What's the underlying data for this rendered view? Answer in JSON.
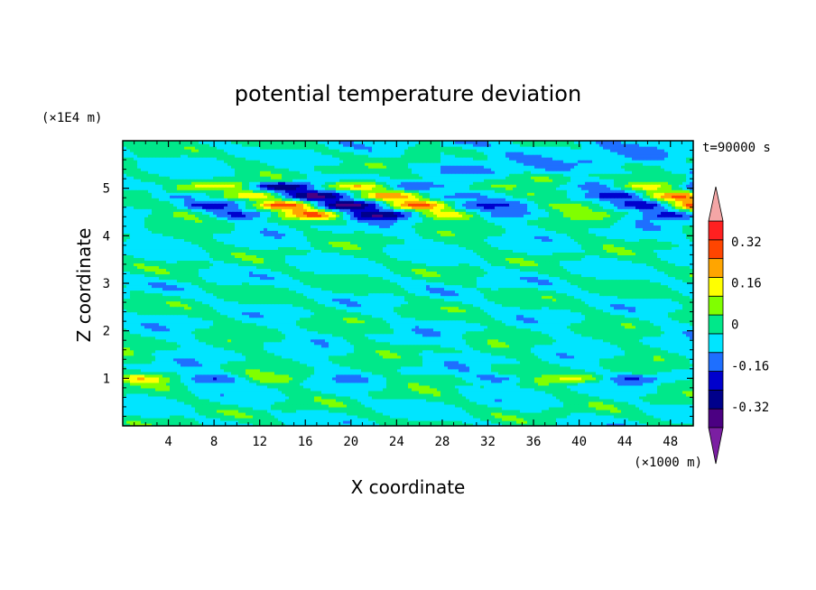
{
  "chart_data": {
    "type": "heatmap",
    "title": "potential temperature deviation",
    "xlabel": "X coordinate",
    "ylabel": "Z coordinate",
    "x_unit": "(×1000 m)",
    "y_unit": "(×1E4 m)",
    "time_label": "t=90000 s",
    "xlim": [
      0,
      50
    ],
    "ylim": [
      0,
      6
    ],
    "x_ticks": [
      "4",
      "8",
      "12",
      "16",
      "20",
      "24",
      "28",
      "32",
      "36",
      "40",
      "44",
      "48"
    ],
    "y_ticks": [
      "1",
      "2",
      "3",
      "4",
      "5"
    ],
    "colorbar": {
      "tick_labels": [
        "0.32",
        "0.16",
        "0",
        "-0.16",
        "-0.32"
      ],
      "tick_values": [
        0.32,
        0.16,
        0,
        -0.16,
        -0.32
      ],
      "levels": [
        -0.4,
        -0.32,
        -0.24,
        -0.16,
        -0.08,
        0,
        0.08,
        0.16,
        0.24,
        0.32,
        0.4
      ],
      "colors": [
        "#4b0082",
        "#00008b",
        "#0000cd",
        "#1e6fff",
        "#00e5ff",
        "#00e88a",
        "#80ff00",
        "#ffff00",
        "#ffa500",
        "#ff4500",
        "#ff2020"
      ],
      "under_color": "#7b1fa2",
      "over_color": "#f4a6a6"
    },
    "bands": [
      {
        "z": 5.6,
        "amp": 0.06
      },
      {
        "z": 5.05,
        "amp": 0.35
      },
      {
        "z": 4.85,
        "amp": 0.38
      },
      {
        "z": 4.65,
        "amp": 0.42
      },
      {
        "z": 4.45,
        "amp": 0.3
      },
      {
        "z": 1.0,
        "amp": 0.18
      }
    ]
  }
}
